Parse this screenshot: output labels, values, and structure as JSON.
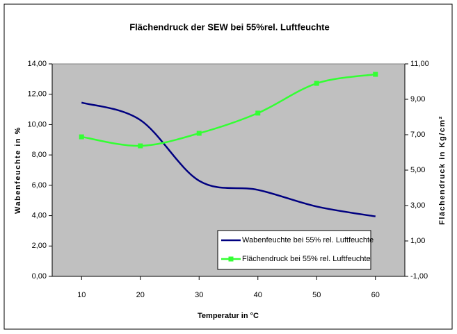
{
  "chart_data": {
    "type": "line",
    "title": "Flächendruck der SEW bei 55%rel. Luftfeuchte",
    "x_label": "Temperatur in °C",
    "y_label": "Wabenfeuchte in %",
    "y2_label": "Flächendruck in Kg/cm²",
    "x": [
      10,
      20,
      30,
      40,
      50,
      60
    ],
    "xlim": [
      5,
      65
    ],
    "xticks": [
      10,
      20,
      30,
      40,
      50,
      60
    ],
    "ylim": [
      0,
      14
    ],
    "yticks": [
      {
        "value": 0,
        "label": "0,00"
      },
      {
        "value": 2,
        "label": "2,00"
      },
      {
        "value": 4,
        "label": "4,00"
      },
      {
        "value": 6,
        "label": "6,00"
      },
      {
        "value": 8,
        "label": "8,00"
      },
      {
        "value": 10,
        "label": "10,00"
      },
      {
        "value": 12,
        "label": "12,00"
      },
      {
        "value": 14,
        "label": "14,00"
      }
    ],
    "y2lim": [
      -1,
      11
    ],
    "y2ticks": [
      {
        "value": -1,
        "label": "-1,00"
      },
      {
        "value": 1,
        "label": "1,00"
      },
      {
        "value": 3,
        "label": "3,00"
      },
      {
        "value": 5,
        "label": "5,00"
      },
      {
        "value": 7,
        "label": "7,00"
      },
      {
        "value": 9,
        "label": "9,00"
      },
      {
        "value": 11,
        "label": "11,00"
      }
    ],
    "legend": "lower right",
    "series": [
      {
        "name": "Wabenfeuchte bei 55% rel. Luftfeuchte",
        "color": "#000080",
        "values": [
          11.45,
          10.3,
          6.3,
          5.7,
          4.6,
          3.95
        ],
        "markers": false
      },
      {
        "name": "Flächendruck bei 55% rel. Luftfeuchte",
        "color": "#33ff33",
        "values": [
          6.88,
          6.37,
          7.08,
          8.22,
          9.9,
          10.41
        ],
        "axis": "y2",
        "markers": true
      }
    ]
  }
}
